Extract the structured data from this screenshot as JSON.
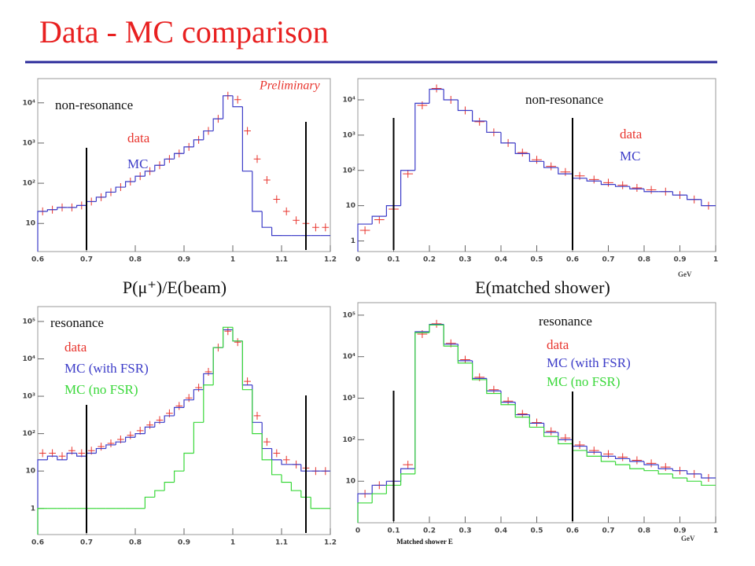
{
  "title": "Data - MC comparison",
  "chart_data": [
    {
      "type": "histogram",
      "annotation": "Preliminary",
      "region": "non-resonance",
      "x_label": "P(μ⁺)/E(beam)",
      "log_y": true,
      "xlim": [
        0.6,
        1.2
      ],
      "xticks": [
        0.6,
        0.7,
        0.8,
        0.9,
        1,
        1.1,
        1.2
      ],
      "ylim": [
        2,
        40000
      ],
      "yticks": [
        10,
        {
          "value": 100,
          "label": "10²"
        },
        {
          "value": 1000,
          "label": "10³"
        },
        {
          "value": 10000,
          "label": "10⁴"
        }
      ],
      "cut_lines": [
        0.7,
        1.15
      ],
      "bins": [
        0.6,
        0.62,
        0.64,
        0.66,
        0.68,
        0.7,
        0.72,
        0.74,
        0.76,
        0.78,
        0.8,
        0.82,
        0.84,
        0.86,
        0.88,
        0.9,
        0.92,
        0.94,
        0.96,
        0.98,
        1,
        1.02,
        1.04,
        1.06,
        1.08,
        1.1,
        1.12,
        1.14,
        1.16,
        1.18,
        1.2
      ],
      "series": [
        {
          "name": "data",
          "color": "#e8352e",
          "style": "points",
          "values": [
            20,
            22,
            25,
            25,
            28,
            35,
            45,
            60,
            80,
            110,
            150,
            200,
            280,
            400,
            550,
            800,
            1200,
            2000,
            4000,
            15000,
            12000,
            2000,
            400,
            120,
            40,
            20,
            12,
            10,
            8,
            8
          ]
        },
        {
          "name": "MC",
          "color": "#3c3cc8",
          "style": "step",
          "values": [
            20,
            22,
            25,
            25,
            28,
            35,
            45,
            60,
            80,
            110,
            150,
            200,
            280,
            400,
            550,
            800,
            1200,
            2000,
            4000,
            15000,
            8000,
            200,
            20,
            8,
            5,
            5,
            5,
            5,
            5,
            5
          ]
        }
      ]
    },
    {
      "type": "histogram",
      "region": "non-resonance",
      "x_label": "E(matched shower)",
      "unit": "GeV",
      "log_y": true,
      "xlim": [
        0,
        1
      ],
      "xticks": [
        0,
        0.1,
        0.2,
        0.3,
        0.4,
        0.5,
        0.6,
        0.7,
        0.8,
        0.9,
        1
      ],
      "ylim": [
        0.5,
        40000
      ],
      "yticks": [
        1,
        10,
        {
          "value": 100,
          "label": "10²"
        },
        {
          "value": 1000,
          "label": "10³"
        },
        {
          "value": 10000,
          "label": "10⁴"
        }
      ],
      "cut_lines": [
        0.1,
        0.6
      ],
      "bins": [
        0,
        0.04,
        0.08,
        0.12,
        0.16,
        0.2,
        0.24,
        0.28,
        0.32,
        0.36,
        0.4,
        0.44,
        0.48,
        0.52,
        0.56,
        0.6,
        0.64,
        0.68,
        0.72,
        0.76,
        0.8,
        0.84,
        0.88,
        0.92,
        0.96,
        1
      ],
      "series": [
        {
          "name": "data",
          "color": "#e8352e",
          "style": "points",
          "values": [
            2,
            4,
            8,
            80,
            7000,
            21000,
            10000,
            5000,
            2400,
            1200,
            600,
            320,
            200,
            130,
            90,
            70,
            55,
            45,
            38,
            32,
            28,
            25,
            20,
            15,
            10
          ]
        },
        {
          "name": "MC",
          "color": "#3c3cc8",
          "style": "step",
          "values": [
            3,
            5,
            10,
            100,
            8000,
            20000,
            10000,
            5000,
            2500,
            1200,
            600,
            300,
            180,
            120,
            80,
            60,
            50,
            40,
            35,
            30,
            25,
            25,
            20,
            15,
            10
          ]
        }
      ]
    },
    {
      "type": "histogram",
      "region": "resonance",
      "log_y": true,
      "xlim": [
        0.6,
        1.2
      ],
      "xticks": [
        0.6,
        0.7,
        0.8,
        0.9,
        1,
        1.1,
        1.2
      ],
      "ylim": [
        0.2,
        250000
      ],
      "yticks": [
        1,
        10,
        {
          "value": 100,
          "label": "10²"
        },
        {
          "value": 1000,
          "label": "10³"
        },
        {
          "value": 10000,
          "label": "10⁴"
        },
        {
          "value": 100000,
          "label": "10⁵"
        }
      ],
      "cut_lines": [
        0.7,
        1.15
      ],
      "bins": [
        0.6,
        0.62,
        0.64,
        0.66,
        0.68,
        0.7,
        0.72,
        0.74,
        0.76,
        0.78,
        0.8,
        0.82,
        0.84,
        0.86,
        0.88,
        0.9,
        0.92,
        0.94,
        0.96,
        0.98,
        1,
        1.02,
        1.04,
        1.06,
        1.08,
        1.1,
        1.12,
        1.14,
        1.16,
        1.18,
        1.2
      ],
      "series": [
        {
          "name": "data",
          "color": "#e8352e",
          "style": "points",
          "values": [
            30,
            30,
            25,
            35,
            30,
            35,
            45,
            55,
            70,
            90,
            120,
            170,
            230,
            350,
            550,
            900,
            1700,
            4500,
            20000,
            55000,
            28000,
            2500,
            300,
            60,
            30,
            20,
            15,
            12,
            10,
            10
          ]
        },
        {
          "name": "MC (with FSR)",
          "color": "#3c3cc8",
          "style": "step",
          "values": [
            20,
            25,
            20,
            30,
            25,
            30,
            40,
            50,
            60,
            80,
            100,
            150,
            200,
            300,
            500,
            800,
            1500,
            4000,
            20000,
            60000,
            30000,
            2000,
            200,
            40,
            20,
            15,
            15,
            10,
            10,
            10
          ]
        },
        {
          "name": "MC (no FSR)",
          "color": "#3ad83a",
          "style": "step",
          "values": [
            1,
            1,
            1,
            1,
            1,
            1,
            1,
            1,
            1,
            1,
            1,
            2,
            3,
            5,
            10,
            30,
            200,
            2000,
            20000,
            70000,
            30000,
            1500,
            100,
            20,
            8,
            5,
            3,
            2,
            1,
            1
          ]
        }
      ]
    },
    {
      "type": "histogram",
      "region": "resonance",
      "x_label": "Matched shower E",
      "unit": "GeV",
      "log_y": true,
      "xlim": [
        0,
        1
      ],
      "xticks": [
        0,
        0.1,
        0.2,
        0.3,
        0.4,
        0.5,
        0.6,
        0.7,
        0.8,
        0.9,
        1
      ],
      "ylim": [
        1,
        200000
      ],
      "yticks": [
        10,
        {
          "value": 100,
          "label": "10²"
        },
        {
          "value": 1000,
          "label": "10³"
        },
        {
          "value": 10000,
          "label": "10⁴"
        },
        {
          "value": 100000,
          "label": "10⁵"
        }
      ],
      "cut_lines": [
        0.1,
        0.6
      ],
      "bins": [
        0,
        0.04,
        0.08,
        0.12,
        0.16,
        0.2,
        0.24,
        0.28,
        0.32,
        0.36,
        0.4,
        0.44,
        0.48,
        0.52,
        0.56,
        0.6,
        0.64,
        0.68,
        0.72,
        0.76,
        0.8,
        0.84,
        0.88,
        0.92,
        0.96,
        1
      ],
      "series": [
        {
          "name": "data",
          "color": "#e8352e",
          "style": "points",
          "values": [
            5,
            8,
            10,
            25,
            35000,
            62000,
            21000,
            8500,
            3200,
            1600,
            850,
            420,
            260,
            160,
            110,
            75,
            55,
            45,
            38,
            32,
            27,
            22,
            18,
            15,
            12
          ]
        },
        {
          "name": "MC (with FSR)",
          "color": "#3c3cc8",
          "style": "step",
          "values": [
            5,
            8,
            10,
            20,
            40000,
            60000,
            20000,
            8000,
            3000,
            1500,
            800,
            400,
            250,
            150,
            100,
            70,
            50,
            40,
            35,
            30,
            25,
            20,
            18,
            15,
            12
          ]
        },
        {
          "name": "MC (no FSR)",
          "color": "#3ad83a",
          "style": "step",
          "values": [
            3,
            5,
            8,
            15,
            38000,
            58000,
            18000,
            7000,
            2800,
            1300,
            700,
            350,
            200,
            120,
            80,
            55,
            40,
            30,
            25,
            20,
            18,
            15,
            12,
            10,
            8
          ]
        }
      ]
    }
  ]
}
